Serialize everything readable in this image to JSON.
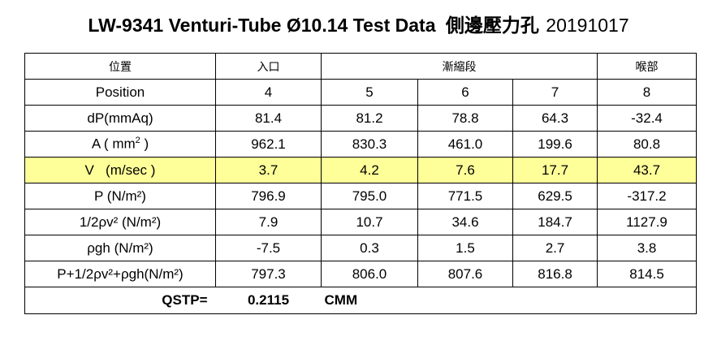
{
  "title": {
    "main": "LW-9341 Venturi-Tube Ø10.14 Test Data",
    "cjk": "側邊壓力孔",
    "date": "20191017"
  },
  "headers": {
    "label": "位置",
    "inlet": "入口",
    "taper": "漸縮段",
    "throat": "喉部"
  },
  "rows": [
    {
      "label": "Position",
      "values": [
        "4",
        "5",
        "6",
        "7",
        "8"
      ]
    },
    {
      "label": "dP(mmAq)",
      "values": [
        "81.4",
        "81.2",
        "78.8",
        "64.3",
        "-32.4"
      ]
    },
    {
      "label_pre": "A ( mm",
      "label_sup": "2",
      "label_post": " )",
      "values": [
        "962.1",
        "830.3",
        "461.0",
        "199.6",
        "80.8"
      ]
    },
    {
      "label": "V   (m/sec )",
      "values": [
        "3.7",
        "4.2",
        "7.6",
        "17.7",
        "43.7"
      ]
    },
    {
      "label": "P (N/m²)",
      "values": [
        "796.9",
        "795.0",
        "771.5",
        "629.5",
        "-317.2"
      ]
    },
    {
      "label": "1/2ρv² (N/m²)",
      "values": [
        "7.9",
        "10.7",
        "34.6",
        "184.7",
        "1127.9"
      ]
    },
    {
      "label": "ρgh (N/m²)",
      "values": [
        "-7.5",
        "0.3",
        "1.5",
        "2.7",
        "3.8"
      ]
    },
    {
      "label": "P+1/2ρv²+ρgh(N/m²)",
      "values": [
        "797.3",
        "806.0",
        "807.6",
        "816.8",
        "814.5"
      ]
    }
  ],
  "qstp": {
    "label": "QSTP=",
    "value": "0.2115",
    "unit": "CMM"
  },
  "colors": {
    "highlight": "#ffff99",
    "border": "#000000"
  }
}
